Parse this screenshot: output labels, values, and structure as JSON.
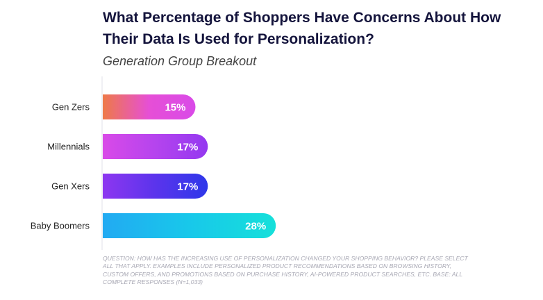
{
  "chart_data": {
    "type": "bar",
    "orientation": "horizontal",
    "title": "What Percentage of Shoppers Have Concerns About How Their Data Is Used for Personalization?",
    "subtitle": "Generation Group Breakout",
    "categories": [
      "Gen Zers",
      "Millennials",
      "Gen Xers",
      "Baby Boomers"
    ],
    "values": [
      15,
      17,
      17,
      28
    ],
    "value_labels": [
      "15%",
      "17%",
      "17%",
      "28%"
    ],
    "xlim": [
      0,
      100
    ],
    "grid": false,
    "legend": "none",
    "bar_gradients": [
      [
        "#ee7a48",
        "#e64fd6",
        "#d94ae8"
      ],
      [
        "#d94ae8",
        "#b544ee",
        "#9438f0"
      ],
      [
        "#8d37f0",
        "#5b34ec",
        "#2e37ea"
      ],
      [
        "#22aaf2",
        "#18c8ea",
        "#16e0da"
      ]
    ],
    "footnote": "QUESTION: HOW HAS THE INCREASING USE OF PERSONALIZATION CHANGED YOUR SHOPPING BEHAVIOR? PLEASE SELECT ALL THAT APPLY. EXAMPLES INCLUDE PERSONALIZED PRODUCT RECOMMENDATIONS BASED ON BROWSING HISTORY, CUSTOM OFFERS, AND PROMOTIONS BASED ON PURCHASE HISTORY, AI-POWERED PRODUCT SEARCHES, ETC. BASE: ALL COMPLETE RESPONSES (N=1,033)"
  }
}
